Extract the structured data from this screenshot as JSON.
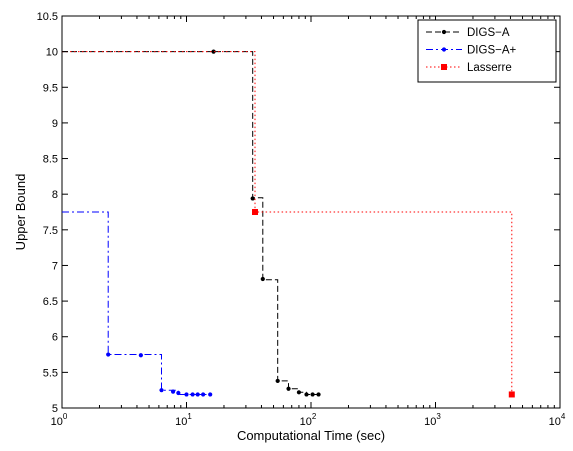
{
  "chart_data": {
    "type": "line",
    "title": "",
    "xlabel": "Computational Time (sec)",
    "ylabel": "Upper Bound",
    "x_scale": "log",
    "xlim": [
      1,
      10000
    ],
    "ylim": [
      5,
      10.5
    ],
    "x_ticks": [
      {
        "value": 1,
        "base": "10",
        "exp": "0"
      },
      {
        "value": 10,
        "base": "10",
        "exp": "1"
      },
      {
        "value": 100,
        "base": "10",
        "exp": "2"
      },
      {
        "value": 1000,
        "base": "10",
        "exp": "3"
      },
      {
        "value": 10000,
        "base": "10",
        "exp": "4"
      }
    ],
    "y_ticks": [
      {
        "value": 5,
        "label": "5"
      },
      {
        "value": 5.5,
        "label": "5.5"
      },
      {
        "value": 6,
        "label": "6"
      },
      {
        "value": 6.5,
        "label": "6.5"
      },
      {
        "value": 7,
        "label": "7"
      },
      {
        "value": 7.5,
        "label": "7.5"
      },
      {
        "value": 8,
        "label": "8"
      },
      {
        "value": 8.5,
        "label": "8.5"
      },
      {
        "value": 9,
        "label": "9"
      },
      {
        "value": 9.5,
        "label": "9.5"
      },
      {
        "value": 10,
        "label": "10"
      },
      {
        "value": 10.5,
        "label": "10.5"
      }
    ],
    "grid": false,
    "legend_position": "top-right",
    "series": [
      {
        "name": "DIGS−A",
        "color": "#000000",
        "line_style": "dashed",
        "marker": "dot",
        "step": true,
        "line_points": [
          [
            1,
            10
          ],
          [
            34,
            10
          ],
          [
            34,
            7.95
          ],
          [
            41,
            7.95
          ],
          [
            41,
            6.8
          ],
          [
            54,
            6.8
          ],
          [
            54,
            5.38
          ],
          [
            66,
            5.38
          ],
          [
            66,
            5.27
          ],
          [
            80,
            5.27
          ],
          [
            80,
            5.22
          ],
          [
            92,
            5.22
          ],
          [
            92,
            5.19
          ],
          [
            115,
            5.19
          ]
        ],
        "markers": [
          [
            16.5,
            10
          ],
          [
            34,
            7.94
          ],
          [
            41,
            6.81
          ],
          [
            54,
            5.38
          ],
          [
            66,
            5.27
          ],
          [
            80,
            5.22
          ],
          [
            92,
            5.19
          ],
          [
            103,
            5.19
          ],
          [
            115,
            5.19
          ]
        ]
      },
      {
        "name": "DIGS−A+",
        "color": "#0000ff",
        "line_style": "dashdot",
        "marker": "dot",
        "step": true,
        "line_points": [
          [
            1,
            7.75
          ],
          [
            2.35,
            7.75
          ],
          [
            2.35,
            5.75
          ],
          [
            6.3,
            5.75
          ],
          [
            6.3,
            5.25
          ],
          [
            8.6,
            5.25
          ],
          [
            8.6,
            5.19
          ],
          [
            16,
            5.19
          ]
        ],
        "markers": [
          [
            2.35,
            5.75
          ],
          [
            4.3,
            5.74
          ],
          [
            6.3,
            5.25
          ],
          [
            7.8,
            5.23
          ],
          [
            8.6,
            5.21
          ],
          [
            10,
            5.19
          ],
          [
            11.2,
            5.19
          ],
          [
            12.3,
            5.19
          ],
          [
            13.6,
            5.19
          ],
          [
            15.5,
            5.19
          ]
        ]
      },
      {
        "name": "Lasserre",
        "color": "#ff0000",
        "line_style": "dotted",
        "marker": "square",
        "step": true,
        "line_points": [
          [
            1,
            10
          ],
          [
            35.5,
            10
          ],
          [
            35.5,
            7.75
          ],
          [
            4100,
            7.75
          ],
          [
            4100,
            5.19
          ]
        ],
        "markers": [
          [
            35.5,
            7.75
          ],
          [
            4100,
            5.19
          ]
        ]
      }
    ]
  }
}
